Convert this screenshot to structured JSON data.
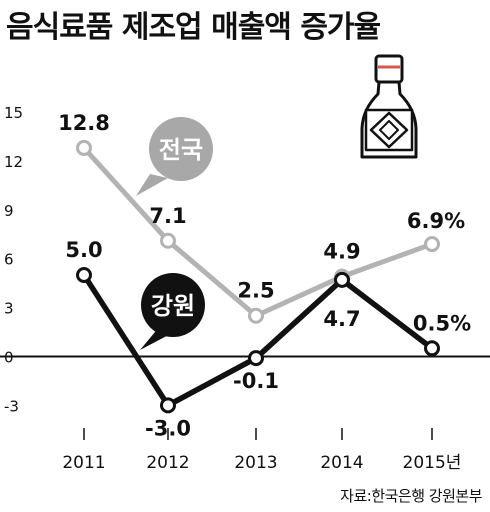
{
  "title": "음식료품 제조업 매출액 증가율",
  "source": "자료:한국은행 강원본부",
  "colors": {
    "national": "#b3b3b3",
    "national_label_bg": "#a8a8a8",
    "gangwon": "#111111",
    "axis": "#111111",
    "grid": "#c8c8c8"
  },
  "icon": "sake-bottle-icon",
  "chart_data": {
    "type": "line",
    "categories": [
      "2011",
      "2012",
      "2013",
      "2014",
      "2015년"
    ],
    "y_ticks": [
      "15",
      "12",
      "9",
      "6",
      "3",
      "0",
      "-3"
    ],
    "y_tick_values": [
      15,
      12,
      9,
      6,
      3,
      0,
      -3
    ],
    "ylim": [
      -3.9,
      16.6
    ],
    "grid": false,
    "title": "음식료품 제조업 매출액 증가율",
    "series": [
      {
        "name": "전국",
        "values": [
          12.8,
          7.1,
          2.5,
          4.9,
          6.9
        ],
        "labels": [
          "12.8",
          "7.1",
          "2.5",
          "4.9",
          "6.9%"
        ]
      },
      {
        "name": "강원",
        "values": [
          5.0,
          -3.0,
          -0.1,
          4.7,
          0.5
        ],
        "labels": [
          "5.0",
          "-3.0",
          "-0.1",
          "4.7",
          "0.5%"
        ]
      }
    ]
  }
}
